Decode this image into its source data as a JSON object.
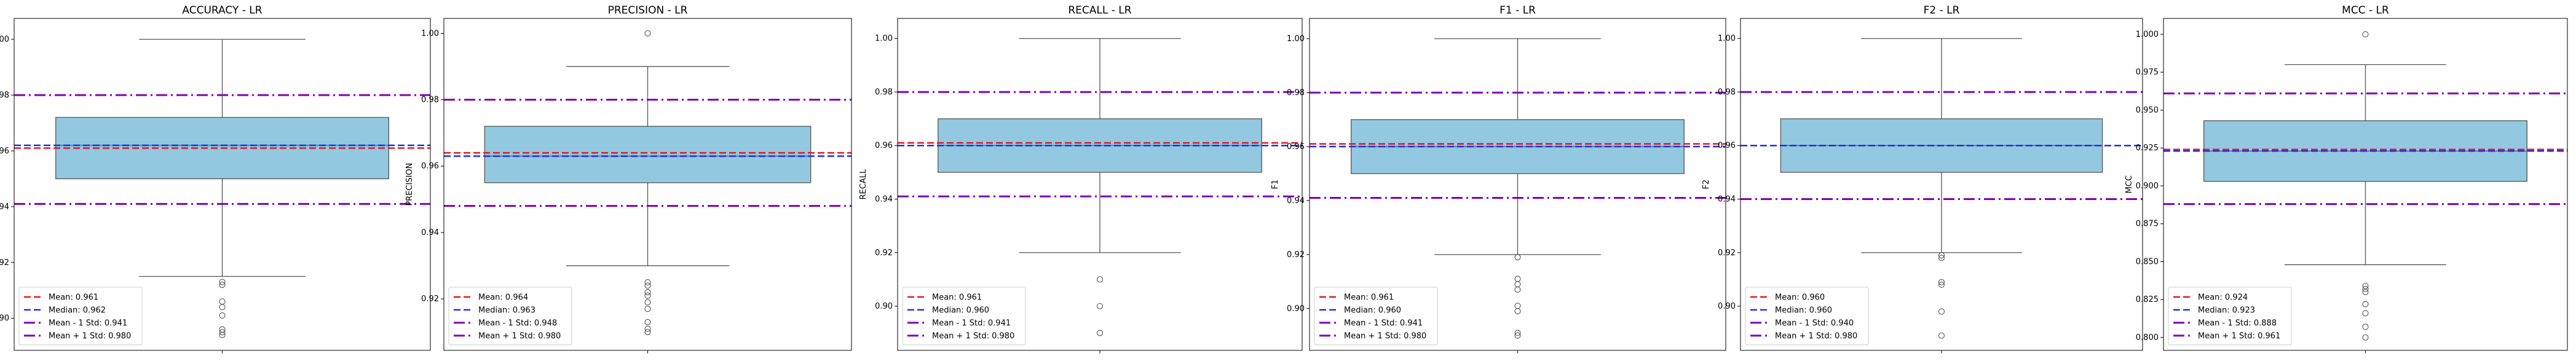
{
  "colors": {
    "box_fill": "#92c9e0",
    "box_edge": "#555555",
    "mean_line": "#e8141e",
    "median_line": "#1f2fe8",
    "std_lines": "#8000b4"
  },
  "legend_labels": {
    "mean": "Mean",
    "median": "Median",
    "minus_std": "Mean - 1 Std",
    "plus_std": "Mean + 1 Std"
  },
  "chart_data": [
    {
      "type": "box",
      "title": "ACCURACY - LR",
      "ylabel": "ACCURACY",
      "ylim": [
        0.8885,
        1.0075
      ],
      "yticks": [
        "0.90",
        "0.92",
        "0.94",
        "0.96",
        "0.98",
        "1.00"
      ],
      "box": {
        "whisker_low": 0.915,
        "q1": 0.95,
        "median": 0.962,
        "q3": 0.972,
        "whisker_high": 1.0
      },
      "outliers": [
        0.913,
        0.912,
        0.906,
        0.904,
        0.901,
        0.896,
        0.895,
        0.894
      ],
      "mean": 0.961,
      "median_line": 0.962,
      "minus_std": 0.941,
      "plus_std": 0.98,
      "legend": {
        "mean": "0.961",
        "median": "0.962",
        "minus_std": "0.941",
        "plus_std": "0.980"
      },
      "grid": false,
      "legend_position": "lower-left"
    },
    {
      "type": "box",
      "title": "PRECISION - LR",
      "ylabel": "PRECISION",
      "ylim": [
        0.9045,
        1.0045
      ],
      "yticks": [
        "0.92",
        "0.94",
        "0.96",
        "0.98",
        "1.00"
      ],
      "box": {
        "whisker_low": 0.93,
        "q1": 0.955,
        "median": 0.963,
        "q3": 0.972,
        "whisker_high": 0.99
      },
      "outliers": [
        1.0,
        0.925,
        0.924,
        0.922,
        0.921,
        0.919,
        0.917,
        0.913,
        0.911,
        0.91
      ],
      "mean": 0.964,
      "median_line": 0.963,
      "minus_std": 0.948,
      "plus_std": 0.98,
      "legend": {
        "mean": "0.964",
        "median": "0.963",
        "minus_std": "0.948",
        "plus_std": "0.980"
      },
      "grid": false,
      "legend_position": "lower-left"
    },
    {
      "type": "box",
      "title": "RECALL - LR",
      "ylabel": "RECALL",
      "ylim": [
        0.8835,
        1.0075
      ],
      "yticks": [
        "0.90",
        "0.92",
        "0.94",
        "0.96",
        "0.98",
        "1.00"
      ],
      "box": {
        "whisker_low": 0.92,
        "q1": 0.95,
        "median": 0.96,
        "q3": 0.97,
        "whisker_high": 1.0
      },
      "outliers": [
        0.91,
        0.9,
        0.89
      ],
      "mean": 0.961,
      "median_line": 0.96,
      "minus_std": 0.941,
      "plus_std": 0.98,
      "legend": {
        "mean": "0.961",
        "median": "0.960",
        "minus_std": "0.941",
        "plus_std": "0.980"
      },
      "grid": false,
      "legend_position": "lower-left"
    },
    {
      "type": "box",
      "title": "F1 - LR",
      "ylabel": "F1",
      "ylim": [
        0.8845,
        1.0075
      ],
      "yticks": [
        "0.90",
        "0.92",
        "0.94",
        "0.96",
        "0.98",
        "1.00"
      ],
      "box": {
        "whisker_low": 0.92,
        "q1": 0.95,
        "median": 0.96,
        "q3": 0.97,
        "whisker_high": 1.0
      },
      "outliers": [
        0.919,
        0.911,
        0.909,
        0.907,
        0.901,
        0.899,
        0.891,
        0.89
      ],
      "mean": 0.961,
      "median_line": 0.96,
      "minus_std": 0.941,
      "plus_std": 0.98,
      "legend": {
        "mean": "0.961",
        "median": "0.960",
        "minus_std": "0.941",
        "plus_std": "0.980"
      },
      "grid": false,
      "legend_position": "lower-left"
    },
    {
      "type": "box",
      "title": "F2 - LR",
      "ylabel": "F2",
      "ylim": [
        0.8835,
        1.0075
      ],
      "yticks": [
        "0.90",
        "0.92",
        "0.94",
        "0.96",
        "0.98",
        "1.00"
      ],
      "box": {
        "whisker_low": 0.92,
        "q1": 0.95,
        "median": 0.96,
        "q3": 0.97,
        "whisker_high": 1.0
      },
      "outliers": [
        0.919,
        0.918,
        0.909,
        0.908,
        0.898,
        0.889
      ],
      "mean": 0.96,
      "median_line": 0.96,
      "minus_std": 0.94,
      "plus_std": 0.98,
      "legend": {
        "mean": "0.960",
        "median": "0.960",
        "minus_std": "0.940",
        "plus_std": "0.980"
      },
      "grid": false,
      "legend_position": "lower-left"
    },
    {
      "type": "box",
      "title": "MCC - LR",
      "ylabel": "MCC",
      "ylim": [
        0.7915,
        1.0105
      ],
      "yticks": [
        "0.800",
        "0.825",
        "0.850",
        "0.875",
        "0.900",
        "0.925",
        "0.950",
        "0.975",
        "1.000"
      ],
      "box": {
        "whisker_low": 0.848,
        "q1": 0.903,
        "median": 0.923,
        "q3": 0.943,
        "whisker_high": 0.98
      },
      "outliers": [
        1.0,
        0.834,
        0.832,
        0.83,
        0.822,
        0.816,
        0.807,
        0.8
      ],
      "mean": 0.924,
      "median_line": 0.923,
      "minus_std": 0.888,
      "plus_std": 0.961,
      "legend": {
        "mean": "0.924",
        "median": "0.923",
        "minus_std": "0.888",
        "plus_std": "0.961"
      },
      "grid": false,
      "legend_position": "lower-left"
    }
  ]
}
